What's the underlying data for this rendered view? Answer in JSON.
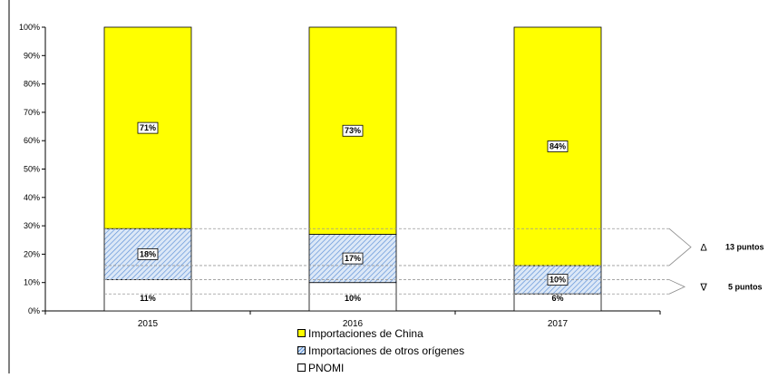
{
  "chart_data": {
    "type": "bar",
    "stacked": true,
    "categories": [
      "2015",
      "2016",
      "2017"
    ],
    "series": [
      {
        "name": "PNOMI",
        "values": [
          11,
          10,
          6
        ],
        "labels": [
          "11%",
          "10%",
          "6%"
        ],
        "color": "#ffffff"
      },
      {
        "name": "Importaciones de otros orígenes",
        "values": [
          18,
          17,
          10
        ],
        "labels": [
          "18%",
          "17%",
          "10%"
        ],
        "color": "#dce8f7",
        "pattern": "diagonal-hatch"
      },
      {
        "name": "Importaciones de China",
        "values": [
          71,
          73,
          84
        ],
        "labels": [
          "71%",
          "73%",
          "84%"
        ],
        "color": "#ffff00"
      }
    ],
    "ylim": [
      0,
      100
    ],
    "yticks": [
      "0%",
      "10%",
      "20%",
      "30%",
      "40%",
      "50%",
      "60%",
      "70%",
      "80%",
      "90%",
      "100%"
    ],
    "grid": false,
    "legend_position": "bottom",
    "annotations": [
      {
        "symbol": "Δ",
        "text": "13 puntos",
        "from": 16,
        "to": 29
      },
      {
        "symbol": "∇",
        "text": "5 puntos",
        "from": 6,
        "to": 11
      }
    ]
  }
}
